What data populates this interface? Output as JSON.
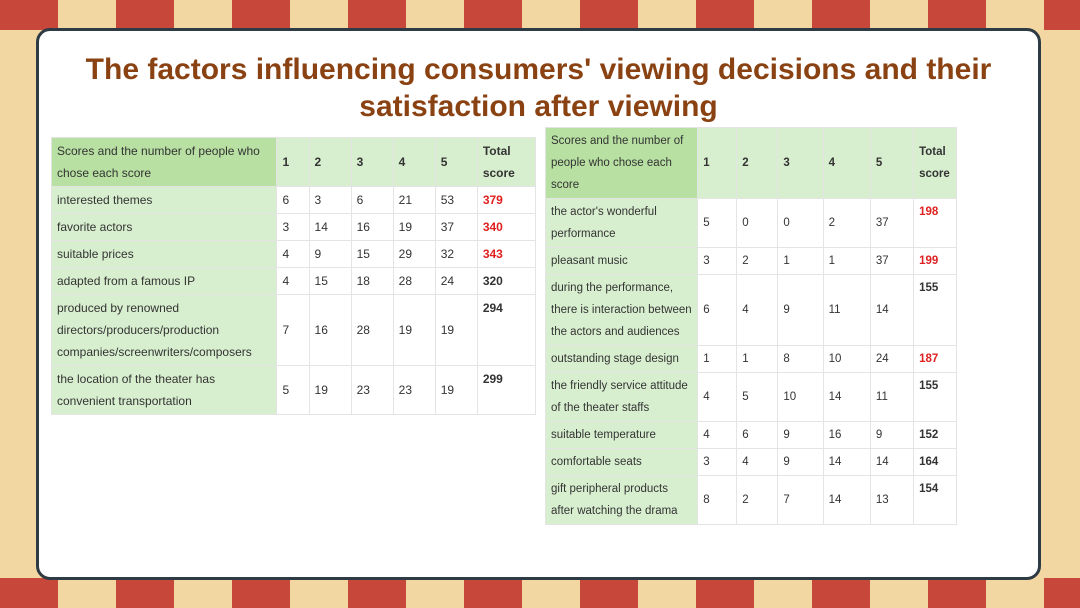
{
  "title": "The factors influencing consumers' viewing decisions and their satisfaction after viewing",
  "table_left": {
    "header": {
      "label": "Scores and the number of people who chose each score",
      "scores": [
        "1",
        "2",
        "3",
        "4",
        "5"
      ],
      "total": "Total score"
    },
    "rows": [
      {
        "label": "interested themes",
        "values": [
          "6",
          "3",
          "6",
          "21",
          "53"
        ],
        "total": "379",
        "highlight": true
      },
      {
        "label": "favorite actors",
        "values": [
          "3",
          "14",
          "16",
          "19",
          "37"
        ],
        "total": "340",
        "highlight": true
      },
      {
        "label": "suitable prices",
        "values": [
          "4",
          "9",
          "15",
          "29",
          "32"
        ],
        "total": "343",
        "highlight": true
      },
      {
        "label": "adapted from a famous IP",
        "values": [
          "4",
          "15",
          "18",
          "28",
          "24"
        ],
        "total": "320",
        "highlight": false
      },
      {
        "label": "produced by renowned directors/producers/production companies/screenwriters/composers",
        "values": [
          "7",
          "16",
          "28",
          "19",
          "19"
        ],
        "total": "294",
        "highlight": false
      },
      {
        "label": "the location of the theater has convenient transportation",
        "values": [
          "5",
          "19",
          "23",
          "23",
          "19"
        ],
        "total": "299",
        "highlight": false
      }
    ]
  },
  "table_right": {
    "header": {
      "label": "Scores and the number of people who chose each score",
      "scores": [
        "1",
        "2",
        "3",
        "4",
        "5"
      ],
      "total": "Total score"
    },
    "rows": [
      {
        "label": "the actor's wonderful performance",
        "values": [
          "5",
          "0",
          "0",
          "2",
          "37"
        ],
        "total": "198",
        "highlight": true
      },
      {
        "label": "pleasant music",
        "values": [
          "3",
          "2",
          "1",
          "1",
          "37"
        ],
        "total": "199",
        "highlight": true
      },
      {
        "label": "during the performance, there is interaction between the actors and audiences",
        "values": [
          "6",
          "4",
          "9",
          "11",
          "14"
        ],
        "total": "155",
        "highlight": false
      },
      {
        "label": "outstanding stage design",
        "values": [
          "1",
          "1",
          "8",
          "10",
          "24"
        ],
        "total": "187",
        "highlight": true
      },
      {
        "label": "the friendly service attitude of the theater staffs",
        "values": [
          "4",
          "5",
          "10",
          "14",
          "11"
        ],
        "total": "155",
        "highlight": false
      },
      {
        "label": "suitable temperature",
        "values": [
          "4",
          "6",
          "9",
          "16",
          "9"
        ],
        "total": "152",
        "highlight": false
      },
      {
        "label": "comfortable seats",
        "values": [
          "3",
          "4",
          "9",
          "14",
          "14"
        ],
        "total": "164",
        "highlight": false
      },
      {
        "label": "gift peripheral products after watching the drama",
        "values": [
          "8",
          "2",
          "7",
          "14",
          "13"
        ],
        "total": "154",
        "highlight": false
      }
    ]
  },
  "colors": {
    "title": "#8a4212",
    "highlight_total": "#e02020",
    "label_bg": "#d8efcf",
    "frame": "#2e3b45",
    "stripe": "#c8473b",
    "background": "#f3d7a3"
  }
}
